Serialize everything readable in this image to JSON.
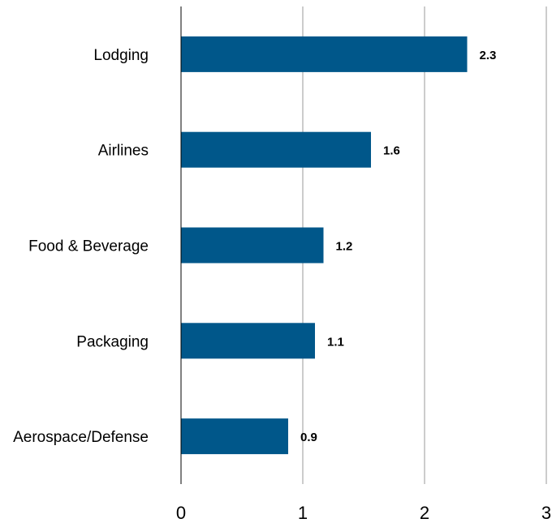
{
  "chart_data": {
    "type": "bar",
    "orientation": "horizontal",
    "title": "",
    "xlabel": "",
    "ylabel": "",
    "categories": [
      "Lodging",
      "Airlines",
      "Food & Beverage",
      "Packaging",
      "Aerospace/Defense"
    ],
    "values": [
      2.35,
      1.56,
      1.17,
      1.1,
      0.88
    ],
    "data_labels": [
      "2.3",
      "1.6",
      "1.2",
      "1.1",
      "0.9"
    ],
    "xlim": [
      0,
      3
    ],
    "xticks": [
      "0",
      "1",
      "2",
      "3"
    ],
    "grid": "vertical",
    "legend": "none",
    "bar_color": "#00578a"
  }
}
